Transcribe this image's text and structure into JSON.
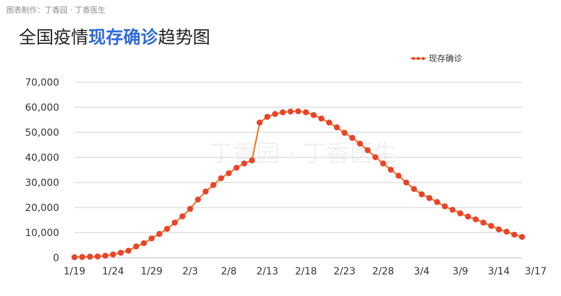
{
  "header": {
    "credit": "图表制作：丁香园 · 丁香医生",
    "title_prefix": "全国疫情",
    "title_highlight": "现存确诊",
    "title_suffix": "趋势图"
  },
  "watermark": "丁香园 · 丁香医生",
  "colors": {
    "line": "#f47a1f",
    "marker": "#e8442c",
    "grid": "#cfcfcf",
    "highlight": "#2f6bd8"
  },
  "chart_data": {
    "type": "line",
    "x": [
      "1/19",
      "1/20",
      "1/21",
      "1/22",
      "1/23",
      "1/24",
      "1/25",
      "1/26",
      "1/27",
      "1/28",
      "1/29",
      "1/30",
      "1/31",
      "2/1",
      "2/2",
      "2/3",
      "2/4",
      "2/5",
      "2/6",
      "2/7",
      "2/8",
      "2/9",
      "2/10",
      "2/11",
      "2/12",
      "2/13",
      "2/14",
      "2/15",
      "2/16",
      "2/17",
      "2/18",
      "2/19",
      "2/20",
      "2/21",
      "2/22",
      "2/23",
      "2/24",
      "2/25",
      "2/26",
      "2/27",
      "2/28",
      "2/29",
      "3/1",
      "3/2",
      "3/3",
      "3/4",
      "3/5",
      "3/6",
      "3/7",
      "3/8",
      "3/9",
      "3/10",
      "3/11",
      "3/12",
      "3/13",
      "3/14",
      "3/15",
      "3/16",
      "3/17"
    ],
    "x_tick_labels": [
      "1/19",
      "1/24",
      "1/29",
      "2/3",
      "2/8",
      "2/13",
      "2/18",
      "2/23",
      "2/28",
      "3/4",
      "3/9",
      "3/14",
      "3/17"
    ],
    "series": [
      {
        "name": "现存确诊",
        "values": [
          200,
          300,
          400,
          500,
          800,
          1300,
          2000,
          2800,
          4500,
          5800,
          7700,
          9500,
          11500,
          14000,
          16500,
          19500,
          23200,
          26400,
          29000,
          31700,
          33700,
          35900,
          37600,
          38800,
          53900,
          56200,
          57300,
          58000,
          58300,
          58400,
          58000,
          56900,
          55500,
          53900,
          52000,
          49800,
          47800,
          45500,
          42900,
          40100,
          37600,
          35100,
          32700,
          30000,
          27400,
          25300,
          23800,
          22200,
          20500,
          19100,
          17700,
          16400,
          15300,
          14000,
          12700,
          11300,
          10400,
          9200,
          8300
        ]
      }
    ],
    "y_ticks": [
      "0",
      "10,000",
      "20,000",
      "30,000",
      "40,000",
      "50,000",
      "60,000",
      "70,000"
    ],
    "ylim": [
      0,
      70000
    ],
    "grid": true,
    "legend_position": "top-right"
  }
}
